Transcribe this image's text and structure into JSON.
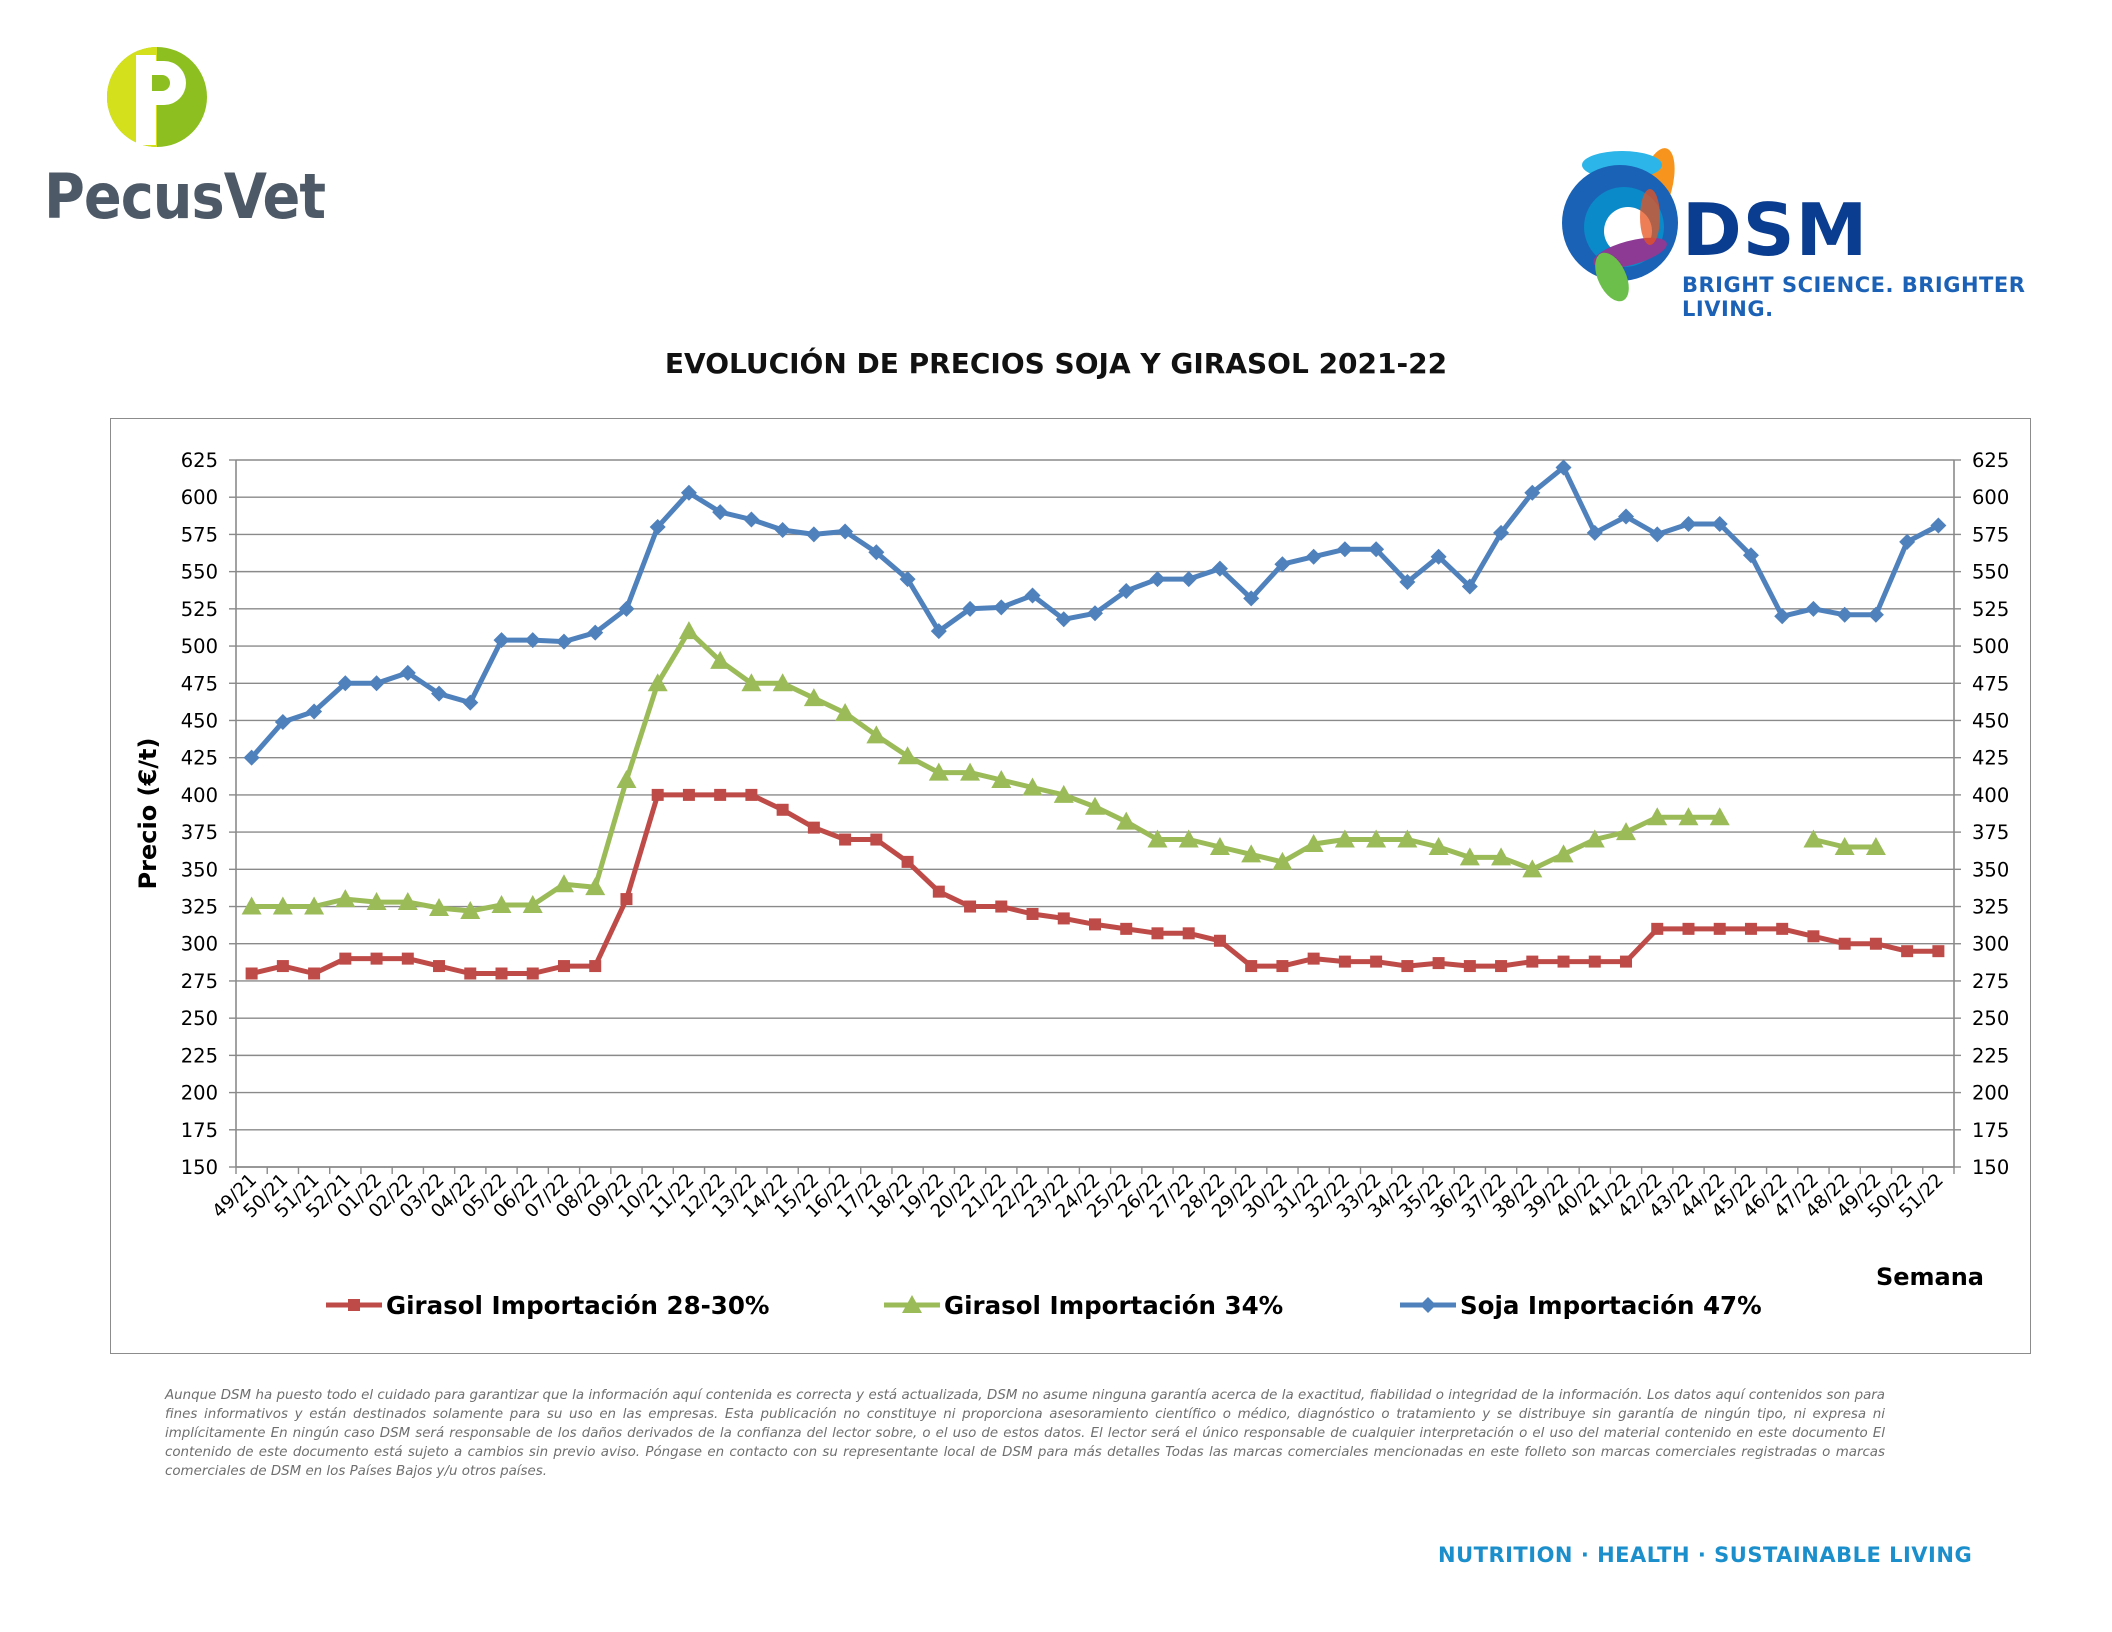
{
  "brand_left": {
    "name": "PecusVet",
    "logo_icon": "pecusvet-p-icon",
    "colors": {
      "green": "#8cbf1f",
      "text": "#4d5966"
    }
  },
  "brand_right": {
    "name": "DSM",
    "tagline": "BRIGHT SCIENCE. BRIGHTER LIVING.",
    "logo_icon": "dsm-swirl-icon",
    "colors": {
      "text": "#0a3d8f"
    }
  },
  "chart_data": {
    "type": "line",
    "title": "EVOLUCIÓN DE PRECIOS SOJA Y GIRASOL 2021-22",
    "xlabel": "Semana",
    "ylabel": "Precio (€/t)",
    "ylim": [
      150,
      625
    ],
    "y_ticks": [
      150,
      175,
      200,
      225,
      250,
      275,
      300,
      325,
      350,
      375,
      400,
      425,
      450,
      475,
      500,
      525,
      550,
      575,
      600,
      625
    ],
    "secondary_y_axis": true,
    "grid": true,
    "legend_position": "bottom",
    "categories": [
      "49/21",
      "50/21",
      "51/21",
      "52/21",
      "01/22",
      "02/22",
      "03/22",
      "04/22",
      "05/22",
      "06/22",
      "07/22",
      "08/22",
      "09/22",
      "10/22",
      "11/22",
      "12/22",
      "13/22",
      "14/22",
      "15/22",
      "16/22",
      "17/22",
      "18/22",
      "19/22",
      "20/22",
      "21/22",
      "22/22",
      "23/22",
      "24/22",
      "25/22",
      "26/22",
      "27/22",
      "28/22",
      "29/22",
      "30/22",
      "31/22",
      "32/22",
      "33/22",
      "34/22",
      "35/22",
      "36/22",
      "37/22",
      "38/22",
      "39/22",
      "40/22",
      "41/22",
      "42/22",
      "43/22",
      "44/22",
      "45/22",
      "46/22",
      "47/22",
      "48/22",
      "49/22",
      "50/22",
      "51/22"
    ],
    "series": [
      {
        "name": "Girasol Importación 28-30%",
        "color": "#be4b48",
        "marker": "square",
        "values": [
          280,
          285,
          280,
          290,
          290,
          290,
          285,
          280,
          280,
          280,
          285,
          285,
          330,
          400,
          400,
          400,
          400,
          390,
          378,
          370,
          370,
          355,
          335,
          325,
          325,
          320,
          317,
          313,
          310,
          307,
          307,
          302,
          285,
          285,
          290,
          288,
          288,
          285,
          287,
          285,
          285,
          288,
          288,
          288,
          288,
          310,
          310,
          310,
          310,
          310,
          305,
          300,
          300,
          295,
          295
        ]
      },
      {
        "name": "Girasol Importación 34%",
        "color": "#9bbb59",
        "marker": "triangle",
        "values": [
          325,
          325,
          325,
          330,
          328,
          328,
          324,
          322,
          326,
          326,
          340,
          338,
          410,
          475,
          510,
          490,
          475,
          475,
          465,
          455,
          440,
          426,
          415,
          415,
          410,
          405,
          400,
          392,
          382,
          370,
          370,
          365,
          360,
          355,
          367,
          370,
          370,
          370,
          365,
          358,
          358,
          350,
          360,
          370,
          375,
          385,
          385,
          385,
          null,
          null,
          370,
          365,
          365,
          null,
          null
        ]
      },
      {
        "name": "Soja Importación 47%",
        "color": "#4f81bd",
        "marker": "diamond",
        "values": [
          425,
          449,
          456,
          475,
          475,
          482,
          468,
          462,
          504,
          504,
          503,
          509,
          525,
          580,
          603,
          590,
          585,
          578,
          575,
          577,
          563,
          545,
          510,
          525,
          526,
          534,
          518,
          522,
          537,
          545,
          545,
          552,
          532,
          555,
          560,
          565,
          565,
          543,
          560,
          540,
          576,
          603,
          620,
          576,
          587,
          575,
          582,
          582,
          561,
          520,
          525,
          521,
          521,
          570,
          581
        ]
      }
    ]
  },
  "disclaimer": "Aunque DSM ha puesto todo el cuidado para garantizar que la información aquí contenida es correcta y está actualizada, DSM no asume ninguna garantía acerca de la exactitud, fiabilidad o integridad de la información. Los datos aquí contenidos son para fines informativos y están destinados solamente para su uso en las empresas. Esta publicación no constituye ni proporciona asesoramiento científico o médico, diagnóstico o tratamiento y se distribuye sin garantía de ningún tipo, ni expresa ni implícitamente En ningún caso DSM será responsable de los daños derivados de la confianza del lector sobre, o el uso de estos datos. El lector será el único responsable de cualquier interpretación o el uso del material contenido en este documento El contenido de este documento está sujeto a cambios sin previo aviso. Póngase en contacto con su representante local de DSM para más detalles Todas las marcas comerciales mencionadas en este folleto son marcas comerciales registradas o marcas comerciales de DSM en los Países Bajos y/u otros países.",
  "footer_tagline": "NUTRITION · HEALTH · SUSTAINABLE LIVING"
}
